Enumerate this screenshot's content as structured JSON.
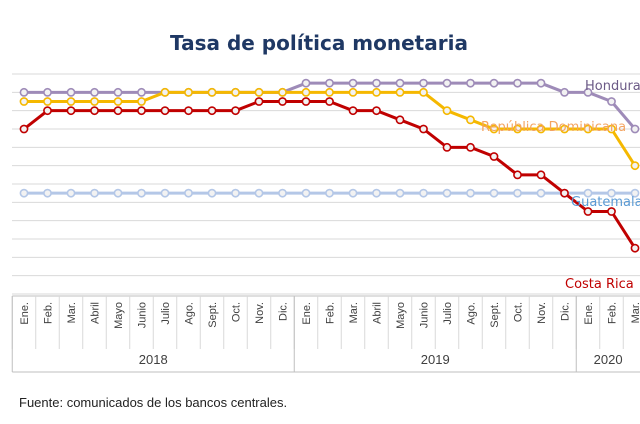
{
  "source": "Fuente: comunicados de los bancos centrales.",
  "chart_data": {
    "type": "line",
    "title": "Tasa de política monetaria",
    "title_color": "#1f3864",
    "categories": [
      "Ene.",
      "Feb.",
      "Mar.",
      "Abril",
      "Mayo",
      "Junio",
      "Julio",
      "Ago.",
      "Sept.",
      "Oct.",
      "Nov.",
      "Dic.",
      "Ene.",
      "Feb.",
      "Mar.",
      "Abril",
      "Mayo",
      "Junio",
      "Julio",
      "Ago.",
      "Sept.",
      "Oct.",
      "Nov.",
      "Dic.",
      "Ene.",
      "Feb.",
      "Mar."
    ],
    "year_groups": [
      {
        "label": "2018",
        "start": 0,
        "end": 11
      },
      {
        "label": "2019",
        "start": 12,
        "end": 23
      },
      {
        "label": "2020",
        "start": 24,
        "end": 26
      }
    ],
    "ylim": [
      0,
      6
    ],
    "grid": true,
    "legend": "inline labels at right",
    "series": [
      {
        "name": "Honduras",
        "color": "#9e8bb8",
        "label_color": "#6b5a86",
        "values": [
          5.5,
          5.5,
          5.5,
          5.5,
          5.5,
          5.5,
          5.5,
          5.5,
          5.5,
          5.5,
          5.5,
          5.5,
          5.75,
          5.75,
          5.75,
          5.75,
          5.75,
          5.75,
          5.75,
          5.75,
          5.75,
          5.75,
          5.75,
          5.5,
          5.5,
          5.25,
          4.5
        ]
      },
      {
        "name": "República Dominicana",
        "color": "#f5b800",
        "label_color": "#f4a460",
        "values": [
          5.25,
          5.25,
          5.25,
          5.25,
          5.25,
          5.25,
          5.5,
          5.5,
          5.5,
          5.5,
          5.5,
          5.5,
          5.5,
          5.5,
          5.5,
          5.5,
          5.5,
          5.5,
          5.0,
          4.75,
          4.5,
          4.5,
          4.5,
          4.5,
          4.5,
          4.5,
          3.5
        ]
      },
      {
        "name": "Guatemala",
        "color": "#b4c7e7",
        "label_color": "#5b9bd5",
        "values": [
          2.75,
          2.75,
          2.75,
          2.75,
          2.75,
          2.75,
          2.75,
          2.75,
          2.75,
          2.75,
          2.75,
          2.75,
          2.75,
          2.75,
          2.75,
          2.75,
          2.75,
          2.75,
          2.75,
          2.75,
          2.75,
          2.75,
          2.75,
          2.75,
          2.75,
          2.75,
          2.75
        ]
      },
      {
        "name": "Costa Rica",
        "color": "#c00000",
        "label_color": "#c00000",
        "values": [
          4.5,
          5.0,
          5.0,
          5.0,
          5.0,
          5.0,
          5.0,
          5.0,
          5.0,
          5.0,
          5.25,
          5.25,
          5.25,
          5.25,
          5.0,
          5.0,
          4.75,
          4.5,
          4.0,
          4.0,
          3.75,
          3.25,
          3.25,
          2.75,
          2.25,
          2.25,
          1.25
        ]
      }
    ]
  }
}
